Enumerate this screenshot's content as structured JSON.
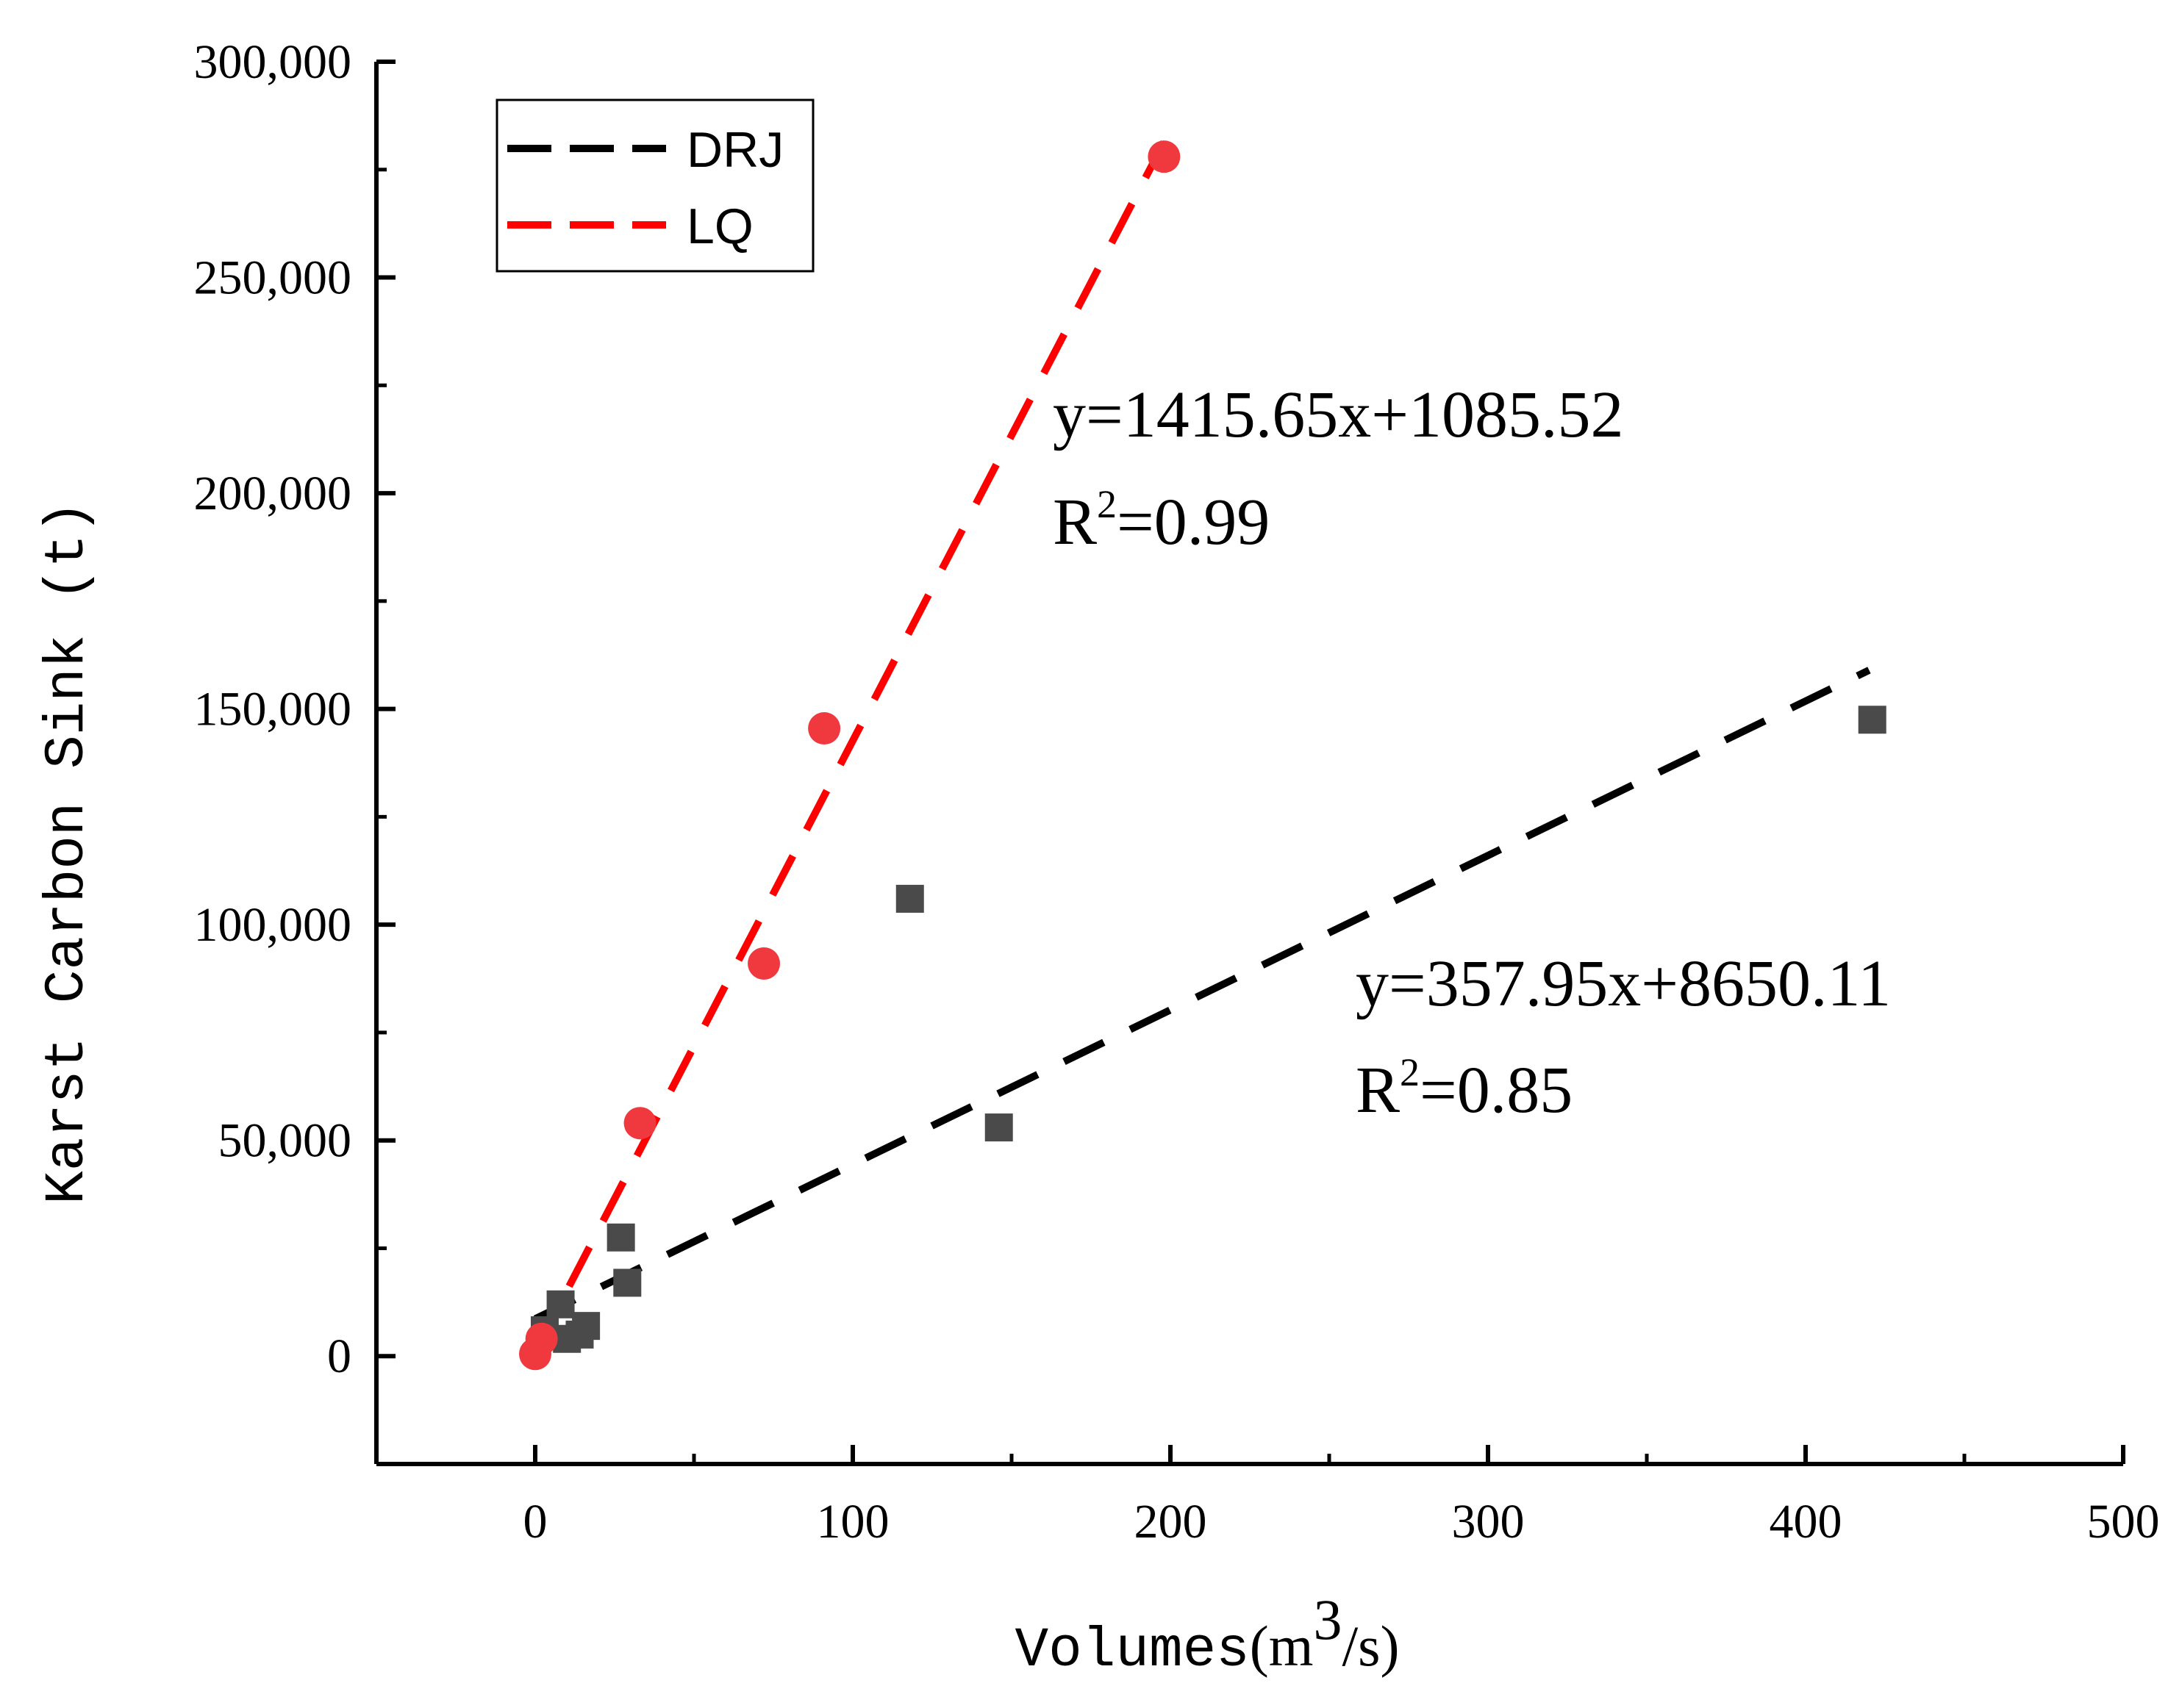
{
  "chart_data": {
    "type": "scatter",
    "title": "",
    "xlabel": {
      "main": "Volumes",
      "unit_prefix": "(m",
      "unit_sup": "3",
      "unit_suffix": "/s)"
    },
    "ylabel": "Karst Carbon Sink (t)",
    "xlim": [
      -50,
      500
    ],
    "ylim": [
      -25000,
      300000
    ],
    "x_ticks": [
      0,
      100,
      200,
      300,
      400,
      500
    ],
    "x_tick_labels": [
      "0",
      "100",
      "200",
      "300",
      "400",
      "500"
    ],
    "y_ticks": [
      0,
      50000,
      100000,
      150000,
      200000,
      250000,
      300000
    ],
    "y_tick_labels": [
      "0",
      "50,000",
      "100,000",
      "150,000",
      "200,000",
      "250,000",
      "300,000"
    ],
    "legend_position": "top-left",
    "series": [
      {
        "name": "DRJ",
        "color": "#000000",
        "marker": "square",
        "marker_color": "#4a4a4a",
        "points": [
          {
            "x": 3,
            "y": 6000
          },
          {
            "x": 8,
            "y": 12000
          },
          {
            "x": 10,
            "y": 4000
          },
          {
            "x": 14,
            "y": 5000
          },
          {
            "x": 16,
            "y": 7000
          },
          {
            "x": 27,
            "y": 27500
          },
          {
            "x": 29,
            "y": 17000
          },
          {
            "x": 118,
            "y": 106000
          },
          {
            "x": 146,
            "y": 53000
          },
          {
            "x": 421,
            "y": 147500
          }
        ],
        "fit": {
          "slope": 357.95,
          "intercept": 8650.11,
          "x_range": [
            0,
            420
          ],
          "equation": "y=357.95x+8650.11",
          "r2_prefix": "R",
          "r2_sup": "2",
          "r2_value": "=0.85"
        }
      },
      {
        "name": "LQ",
        "color": "#ff0000",
        "marker": "circle",
        "marker_color": "#f0393f",
        "points": [
          {
            "x": 0,
            "y": 500
          },
          {
            "x": 2,
            "y": 4000
          },
          {
            "x": 33,
            "y": 54000
          },
          {
            "x": 72,
            "y": 91000
          },
          {
            "x": 91,
            "y": 145500
          },
          {
            "x": 198,
            "y": 278000
          }
        ],
        "fit": {
          "slope": 1415.65,
          "intercept": 1085.52,
          "x_range": [
            0,
            198
          ],
          "equation": "y=1415.65x+1085.52",
          "r2_prefix": "R",
          "r2_sup": "2",
          "r2_value": "=0.99"
        }
      }
    ]
  }
}
